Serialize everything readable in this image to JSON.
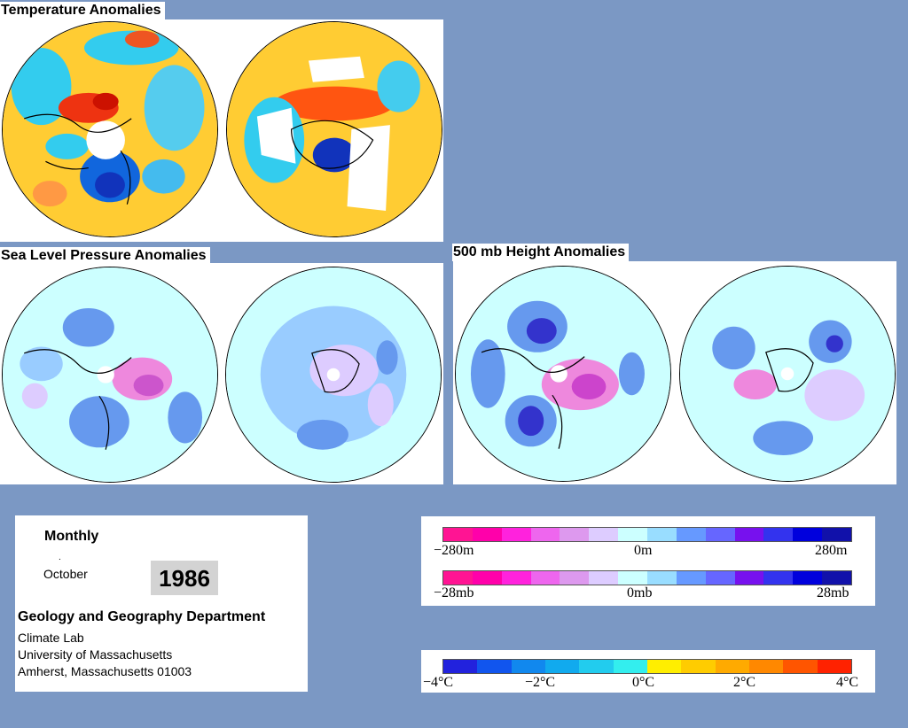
{
  "titles": {
    "temperature": "Temperature Anomalies",
    "slp": "Sea Level Pressure Anomalies",
    "height": "500 mb Height Anomalies"
  },
  "info": {
    "period": "Monthly",
    "month": "October",
    "year": "1986",
    "department": "Geology and Geography Department",
    "lab": "Climate Lab",
    "university": "University of Massachusetts",
    "address": "Amherst, Massachusetts 01003"
  },
  "legend_height": {
    "labels": [
      "−280m",
      "0m",
      "280m"
    ],
    "colors": [
      "#ff1493",
      "#ff00aa",
      "#ff22dd",
      "#ee66ee",
      "#dd99ee",
      "#ddccff",
      "#ccffff",
      "#99ddff",
      "#6699ff",
      "#6666ff",
      "#7711ee",
      "#3333ee",
      "#0000dd",
      "#1111aa"
    ]
  },
  "legend_pressure": {
    "labels": [
      "−28mb",
      "0mb",
      "28mb"
    ],
    "colors": [
      "#ff1493",
      "#ff00aa",
      "#ff22dd",
      "#ee66ee",
      "#dd99ee",
      "#ddccff",
      "#ccffff",
      "#99ddff",
      "#6699ff",
      "#6666ff",
      "#7711ee",
      "#3333ee",
      "#0000dd",
      "#1111aa"
    ]
  },
  "legend_temp": {
    "labels": [
      "−4°C",
      "−2°C",
      "0°C",
      "2°C",
      "4°C"
    ],
    "colors": [
      "#2222dd",
      "#1155ee",
      "#1188ee",
      "#11aaee",
      "#22ccee",
      "#33eeee",
      "#ffee00",
      "#ffcc00",
      "#ffaa00",
      "#ff8800",
      "#ff5500",
      "#ff2200"
    ]
  }
}
